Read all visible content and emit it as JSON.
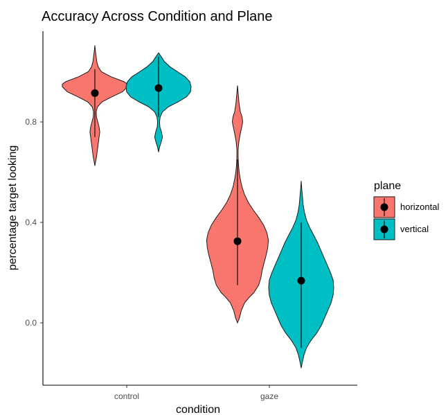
{
  "chart_data": {
    "type": "violin",
    "title": "Accuracy Across Condition and Plane",
    "xlabel": "condition",
    "ylabel": "percentage target looking",
    "categories": [
      "control",
      "gaze"
    ],
    "yticks": [
      "0.0",
      "0.4",
      "0.8"
    ],
    "ytick_values": [
      0.0,
      0.4,
      0.8
    ],
    "ylim": [
      -0.25,
      1.1
    ],
    "grid": false,
    "legend": {
      "title": "plane",
      "position": "right",
      "entries": [
        "horizontal",
        "vertical"
      ]
    },
    "colors": {
      "horizontal": "#f8766d",
      "vertical": "#00bfc4"
    },
    "series": [
      {
        "name": "horizontal",
        "color": "#f8766d",
        "violins": [
          {
            "category": "control",
            "mean": 0.915,
            "ci": [
              0.74,
              1.01
            ],
            "profile": [
              [
                0.625,
                0.0
              ],
              [
                0.64,
                0.02
              ],
              [
                0.66,
                0.05
              ],
              [
                0.68,
                0.07
              ],
              [
                0.7,
                0.09
              ],
              [
                0.72,
                0.11
              ],
              [
                0.74,
                0.13
              ],
              [
                0.76,
                0.15
              ],
              [
                0.78,
                0.13
              ],
              [
                0.8,
                0.09
              ],
              [
                0.82,
                0.05
              ],
              [
                0.84,
                0.04
              ],
              [
                0.86,
                0.08
              ],
              [
                0.88,
                0.22
              ],
              [
                0.9,
                0.52
              ],
              [
                0.92,
                0.85
              ],
              [
                0.94,
                1.0
              ],
              [
                0.95,
                1.0
              ],
              [
                0.96,
                0.9
              ],
              [
                0.98,
                0.5
              ],
              [
                1.0,
                0.2
              ],
              [
                1.02,
                0.1
              ],
              [
                1.04,
                0.06
              ],
              [
                1.06,
                0.04
              ],
              [
                1.08,
                0.02
              ],
              [
                1.105,
                0.0
              ]
            ]
          },
          {
            "category": "gaze",
            "mean": 0.325,
            "ci": [
              0.15,
              0.65
            ],
            "profile": [
              [
                0.0,
                0.0
              ],
              [
                0.02,
                0.06
              ],
              [
                0.05,
                0.12
              ],
              [
                0.08,
                0.22
              ],
              [
                0.1,
                0.35
              ],
              [
                0.12,
                0.5
              ],
              [
                0.15,
                0.65
              ],
              [
                0.18,
                0.72
              ],
              [
                0.21,
                0.76
              ],
              [
                0.24,
                0.82
              ],
              [
                0.27,
                0.88
              ],
              [
                0.3,
                0.93
              ],
              [
                0.33,
                0.95
              ],
              [
                0.36,
                0.9
              ],
              [
                0.39,
                0.8
              ],
              [
                0.42,
                0.65
              ],
              [
                0.45,
                0.48
              ],
              [
                0.48,
                0.33
              ],
              [
                0.51,
                0.22
              ],
              [
                0.54,
                0.14
              ],
              [
                0.57,
                0.09
              ],
              [
                0.6,
                0.05
              ],
              [
                0.63,
                0.03
              ],
              [
                0.66,
                0.02
              ],
              [
                0.69,
                0.02
              ],
              [
                0.72,
                0.04
              ],
              [
                0.75,
                0.08
              ],
              [
                0.78,
                0.13
              ],
              [
                0.8,
                0.16
              ],
              [
                0.82,
                0.14
              ],
              [
                0.84,
                0.09
              ],
              [
                0.87,
                0.05
              ],
              [
                0.9,
                0.03
              ],
              [
                0.945,
                0.0
              ]
            ]
          }
        ]
      },
      {
        "name": "vertical",
        "color": "#00bfc4",
        "violins": [
          {
            "category": "control",
            "mean": 0.935,
            "ci": [
              0.82,
              1.06
            ],
            "profile": [
              [
                0.68,
                0.0
              ],
              [
                0.7,
                0.03
              ],
              [
                0.72,
                0.08
              ],
              [
                0.74,
                0.12
              ],
              [
                0.76,
                0.09
              ],
              [
                0.78,
                0.04
              ],
              [
                0.8,
                0.03
              ],
              [
                0.82,
                0.05
              ],
              [
                0.84,
                0.12
              ],
              [
                0.86,
                0.3
              ],
              [
                0.88,
                0.6
              ],
              [
                0.9,
                0.86
              ],
              [
                0.92,
                0.98
              ],
              [
                0.94,
                1.0
              ],
              [
                0.96,
                0.96
              ],
              [
                0.98,
                0.82
              ],
              [
                1.0,
                0.58
              ],
              [
                1.02,
                0.35
              ],
              [
                1.04,
                0.18
              ],
              [
                1.06,
                0.08
              ],
              [
                1.075,
                0.0
              ]
            ]
          },
          {
            "category": "gaze",
            "mean": 0.168,
            "ci": [
              -0.1,
              0.4
            ],
            "profile": [
              [
                -0.18,
                0.0
              ],
              [
                -0.16,
                0.03
              ],
              [
                -0.13,
                0.08
              ],
              [
                -0.1,
                0.16
              ],
              [
                -0.07,
                0.3
              ],
              [
                -0.04,
                0.48
              ],
              [
                -0.01,
                0.62
              ],
              [
                0.02,
                0.72
              ],
              [
                0.05,
                0.82
              ],
              [
                0.08,
                0.92
              ],
              [
                0.11,
                0.98
              ],
              [
                0.14,
                1.0
              ],
              [
                0.17,
                0.98
              ],
              [
                0.2,
                0.9
              ],
              [
                0.23,
                0.8
              ],
              [
                0.26,
                0.7
              ],
              [
                0.29,
                0.6
              ],
              [
                0.32,
                0.5
              ],
              [
                0.35,
                0.38
              ],
              [
                0.38,
                0.26
              ],
              [
                0.41,
                0.16
              ],
              [
                0.44,
                0.1
              ],
              [
                0.47,
                0.06
              ],
              [
                0.5,
                0.04
              ],
              [
                0.53,
                0.02
              ],
              [
                0.565,
                0.0
              ]
            ]
          }
        ]
      }
    ]
  }
}
